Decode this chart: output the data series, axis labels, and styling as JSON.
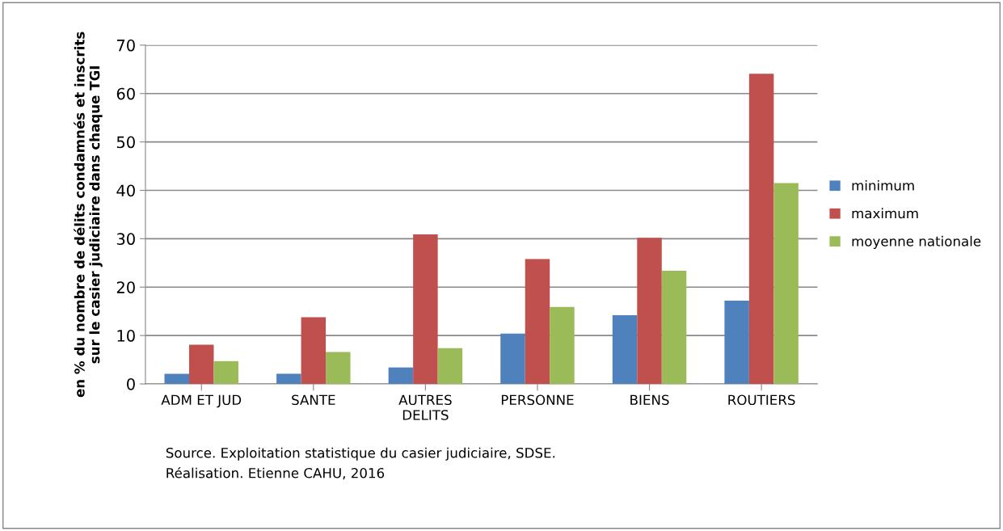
{
  "chart_data": {
    "type": "bar",
    "ylabel": "en % du nombre de délits condamnés et inscrits\nsur le casier judiciaire dans chaque TGI",
    "categories": [
      "ADM ET JUD",
      "SANTE",
      "AUTRES\nDELITS",
      "PERSONNE",
      "BIENS",
      "ROUTIERS"
    ],
    "series": [
      {
        "name": "minimum",
        "color": "#4f81bd",
        "values": [
          2.1,
          2.1,
          3.4,
          10.4,
          14.2,
          17.2
        ]
      },
      {
        "name": "maximum",
        "color": "#c0504d",
        "values": [
          8.1,
          13.8,
          30.9,
          25.8,
          30.2,
          64.1
        ]
      },
      {
        "name": "moyenne nationale",
        "color": "#9bbb59",
        "values": [
          4.7,
          6.6,
          7.4,
          15.9,
          23.4,
          41.5
        ]
      }
    ],
    "ylim": [
      0,
      70
    ],
    "yticks": [
      0,
      10,
      20,
      30,
      40,
      50,
      60,
      70
    ],
    "grid": "y",
    "legend": "right",
    "annotations": [
      "Source. Exploitation statistique du casier judiciaire, SDSE.",
      "Réalisation. Etienne CAHU, 2016"
    ]
  }
}
